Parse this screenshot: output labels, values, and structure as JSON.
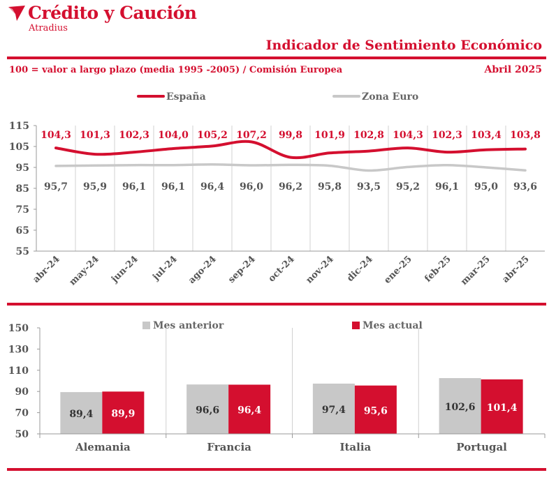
{
  "header": {
    "brand_name": "Crédito y Caución",
    "brand_sub": "Atradius",
    "title": "Indicador de Sentimiento Económico",
    "subtitle": "100 = valor a largo plazo (media 1995 -2005) / Comisión Europea",
    "date": "Abril 2025",
    "colors": {
      "brand": "#d40f2f",
      "grey": "#c8c8c8",
      "text": "#555555"
    },
    "logo_icon": "airplane-icon"
  },
  "chart_data": [
    {
      "type": "line",
      "categories": [
        "abr-24",
        "may-24",
        "jun-24",
        "jul-24",
        "ago-24",
        "sep-24",
        "oct-24",
        "nov-24",
        "dic-24",
        "ene-25",
        "feb-25",
        "mar-25",
        "abr-25"
      ],
      "series": [
        {
          "name": "España",
          "color": "#d40f2f",
          "values": [
            104.3,
            101.3,
            102.3,
            104.0,
            105.2,
            107.2,
            99.8,
            101.9,
            102.8,
            104.3,
            102.3,
            103.4,
            103.8
          ],
          "labels": [
            "104,3",
            "101,3",
            "102,3",
            "104,0",
            "105,2",
            "107,2",
            "99,8",
            "101,9",
            "102,8",
            "104,3",
            "102,3",
            "103,4",
            "103,8"
          ]
        },
        {
          "name": "Zona Euro",
          "color": "#c8c8c8",
          "values": [
            95.7,
            95.9,
            96.1,
            96.1,
            96.4,
            96.0,
            96.2,
            95.8,
            93.5,
            95.2,
            96.1,
            95.0,
            93.6
          ],
          "labels": [
            "95,7",
            "95,9",
            "96,1",
            "96,1",
            "96,4",
            "96,0",
            "96,2",
            "95,8",
            "93,5",
            "95,2",
            "96,1",
            "95,0",
            "93,6"
          ]
        }
      ],
      "ylim": [
        55,
        115
      ],
      "yticks": [
        55,
        65,
        75,
        85,
        95,
        105,
        115
      ],
      "ytick_labels": [
        "55",
        "65",
        "75",
        "85",
        "95",
        "105",
        "115"
      ],
      "legend_position": "top",
      "grid": "vertical"
    },
    {
      "type": "bar",
      "categories": [
        "Alemania",
        "Francia",
        "Italia",
        "Portugal"
      ],
      "series": [
        {
          "name": "Mes anterior",
          "color": "#c8c8c8",
          "values": [
            89.4,
            96.6,
            97.4,
            102.6
          ],
          "labels": [
            "89,4",
            "96,6",
            "97,4",
            "102,6"
          ]
        },
        {
          "name": "Mes actual",
          "color": "#d40f2f",
          "values": [
            89.9,
            96.4,
            95.6,
            101.4
          ],
          "labels": [
            "89,9",
            "96,4",
            "95,6",
            "101,4"
          ]
        }
      ],
      "ylim": [
        50,
        150
      ],
      "yticks": [
        50,
        70,
        90,
        110,
        130,
        150
      ],
      "ytick_labels": [
        "50",
        "70",
        "90",
        "110",
        "130",
        "150"
      ],
      "legend_position": "top",
      "grid": "vertical"
    }
  ]
}
